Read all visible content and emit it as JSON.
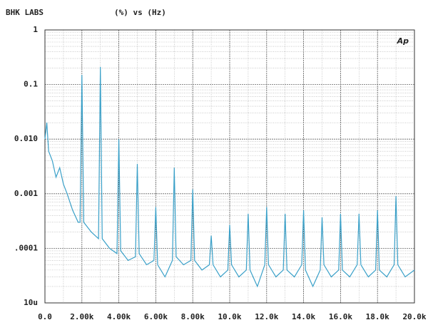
{
  "chart_data": {
    "type": "line",
    "title": "BHK LABS",
    "subtitle": "(%) vs (Hz)",
    "annotation": "Ap",
    "x": [
      0,
      0.1,
      0.2,
      0.4,
      0.6,
      0.8,
      1.0,
      1.2,
      1.5,
      1.8,
      1.9,
      2.0,
      2.1,
      2.5,
      2.9,
      3.0,
      3.1,
      3.5,
      3.9,
      4.0,
      4.1,
      4.5,
      4.9,
      5.0,
      5.1,
      5.5,
      5.9,
      6.0,
      6.1,
      6.5,
      6.9,
      7.0,
      7.1,
      7.5,
      7.9,
      8.0,
      8.1,
      8.5,
      8.9,
      9.0,
      9.1,
      9.5,
      9.9,
      10.0,
      10.1,
      10.5,
      10.9,
      11.0,
      11.1,
      11.5,
      11.9,
      12.0,
      12.1,
      12.5,
      12.9,
      13.0,
      13.1,
      13.5,
      13.9,
      14.0,
      14.1,
      14.5,
      14.9,
      15.0,
      15.1,
      15.5,
      15.9,
      16.0,
      16.1,
      16.5,
      16.9,
      17.0,
      17.1,
      17.5,
      17.9,
      18.0,
      18.1,
      18.5,
      18.9,
      19.0,
      19.1,
      19.5,
      20.0
    ],
    "values": [
      0.01,
      0.02,
      0.006,
      0.004,
      0.002,
      0.003,
      0.0015,
      0.001,
      0.0005,
      0.0003,
      0.0003,
      0.15,
      0.0003,
      0.0002,
      0.00015,
      0.21,
      0.00015,
      0.0001,
      8e-05,
      0.01,
      9e-05,
      6e-05,
      7e-05,
      0.0035,
      8e-05,
      5e-05,
      6e-05,
      0.00057,
      5e-05,
      3e-05,
      6e-05,
      0.003,
      7e-05,
      5e-05,
      6e-05,
      0.0012,
      6e-05,
      4e-05,
      5e-05,
      0.00017,
      5e-05,
      3e-05,
      4e-05,
      0.00027,
      5e-05,
      3e-05,
      4e-05,
      0.00043,
      4e-05,
      2e-05,
      5e-05,
      0.00057,
      5e-05,
      3e-05,
      4e-05,
      0.00043,
      4e-05,
      3e-05,
      5e-05,
      0.0005,
      4e-05,
      2e-05,
      4e-05,
      0.00037,
      5e-05,
      3e-05,
      4e-05,
      0.00043,
      4e-05,
      3e-05,
      5e-05,
      0.00043,
      5e-05,
      3e-05,
      4e-05,
      0.0005,
      4e-05,
      3e-05,
      5e-05,
      0.0009,
      5e-05,
      3e-05,
      4e-05
    ],
    "color": "#3aa0c8",
    "xlim": [
      0,
      20
    ],
    "xticks": [
      {
        "value": 0,
        "label": "0.0"
      },
      {
        "value": 2,
        "label": "2.00k"
      },
      {
        "value": 4,
        "label": "4.00k"
      },
      {
        "value": 6,
        "label": "6.00k"
      },
      {
        "value": 8,
        "label": "8.00k"
      },
      {
        "value": 10,
        "label": "10.0k"
      },
      {
        "value": 12,
        "label": "12.0k"
      },
      {
        "value": 14,
        "label": "14.0k"
      },
      {
        "value": 16,
        "label": "16.0k"
      },
      {
        "value": 18,
        "label": "18.0k"
      },
      {
        "value": 20,
        "label": "20.0k"
      }
    ],
    "ylim": [
      1e-05,
      1
    ],
    "yticks": [
      {
        "value": 1,
        "label": "1"
      },
      {
        "value": 0.1,
        "label": "0.1"
      },
      {
        "value": 0.01,
        "label": "0.010"
      },
      {
        "value": 0.001,
        "label": "0.001"
      },
      {
        "value": 0.0001,
        "label": ".0001"
      },
      {
        "value": 1e-05,
        "label": "10u"
      }
    ],
    "log_y": true,
    "grid": true
  }
}
